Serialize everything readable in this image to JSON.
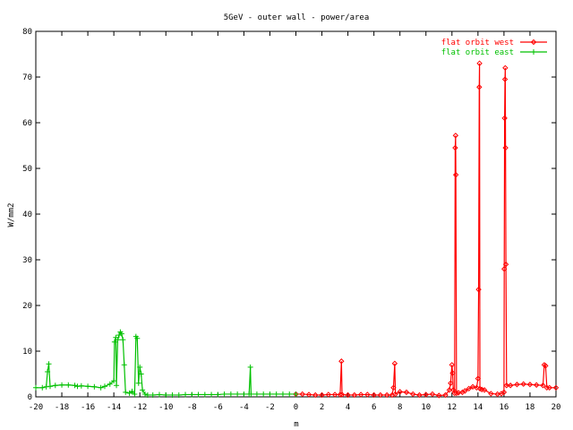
{
  "chart_data": {
    "type": "line",
    "title": "5GeV - outer wall - power/area",
    "xlabel": "m",
    "ylabel": "W/mm2",
    "xlim": [
      -20,
      20
    ],
    "ylim": [
      0,
      80
    ],
    "xticks": [
      -20,
      -18,
      -16,
      -14,
      -12,
      -10,
      -8,
      -6,
      -4,
      -2,
      0,
      2,
      4,
      6,
      8,
      10,
      12,
      14,
      16,
      18,
      20
    ],
    "yticks": [
      0,
      10,
      20,
      30,
      40,
      50,
      60,
      70,
      80
    ],
    "legend_position": "top-right",
    "series": [
      {
        "name": "flat orbit west",
        "color": "#ff0000",
        "marker": "diamond",
        "points": [
          [
            0.0,
            0.6
          ],
          [
            0.5,
            0.6
          ],
          [
            1.0,
            0.5
          ],
          [
            1.5,
            0.4
          ],
          [
            2.0,
            0.4
          ],
          [
            2.5,
            0.5
          ],
          [
            3.0,
            0.5
          ],
          [
            3.4,
            0.5
          ],
          [
            3.5,
            7.8
          ],
          [
            3.55,
            0.5
          ],
          [
            4.0,
            0.4
          ],
          [
            4.5,
            0.4
          ],
          [
            5.0,
            0.5
          ],
          [
            5.5,
            0.5
          ],
          [
            6.0,
            0.4
          ],
          [
            6.5,
            0.4
          ],
          [
            7.0,
            0.4
          ],
          [
            7.4,
            0.4
          ],
          [
            7.5,
            2.0
          ],
          [
            7.6,
            7.3
          ],
          [
            7.65,
            0.6
          ],
          [
            8.0,
            1.1
          ],
          [
            8.5,
            1.0
          ],
          [
            9.0,
            0.6
          ],
          [
            9.5,
            0.4
          ],
          [
            10.0,
            0.5
          ],
          [
            10.5,
            0.6
          ],
          [
            11.0,
            0.3
          ],
          [
            11.5,
            0.4
          ],
          [
            11.8,
            1.5
          ],
          [
            11.9,
            3.0
          ],
          [
            12.0,
            7.0
          ],
          [
            12.05,
            5.2
          ],
          [
            12.1,
            1.5
          ],
          [
            12.2,
            0.8
          ],
          [
            12.25,
            54.5
          ],
          [
            12.28,
            57.2
          ],
          [
            12.3,
            48.6
          ],
          [
            12.35,
            0.8
          ],
          [
            12.5,
            0.9
          ],
          [
            12.8,
            1.0
          ],
          [
            13.0,
            1.3
          ],
          [
            13.3,
            1.8
          ],
          [
            13.6,
            2.2
          ],
          [
            13.9,
            2.0
          ],
          [
            14.0,
            4.0
          ],
          [
            14.05,
            23.5
          ],
          [
            14.1,
            67.8
          ],
          [
            14.12,
            73.0
          ],
          [
            14.15,
            1.8
          ],
          [
            14.3,
            1.6
          ],
          [
            14.5,
            1.5
          ],
          [
            15.0,
            0.7
          ],
          [
            15.5,
            0.6
          ],
          [
            15.8,
            0.7
          ],
          [
            16.0,
            1.0
          ],
          [
            16.02,
            28.0
          ],
          [
            16.05,
            61.0
          ],
          [
            16.08,
            69.5
          ],
          [
            16.1,
            72.0
          ],
          [
            16.12,
            54.5
          ],
          [
            16.15,
            29.0
          ],
          [
            16.2,
            2.5
          ],
          [
            16.5,
            2.5
          ],
          [
            17.0,
            2.7
          ],
          [
            17.5,
            2.8
          ],
          [
            18.0,
            2.7
          ],
          [
            18.5,
            2.6
          ],
          [
            19.0,
            2.5
          ],
          [
            19.1,
            7.0
          ],
          [
            19.2,
            6.8
          ],
          [
            19.3,
            2.0
          ],
          [
            19.5,
            2.0
          ],
          [
            20.0,
            2.0
          ]
        ]
      },
      {
        "name": "flat orbit east",
        "color": "#00c000",
        "marker": "plus",
        "points": [
          [
            -20.0,
            2.0
          ],
          [
            -19.5,
            2.0
          ],
          [
            -19.2,
            2.2
          ],
          [
            -19.1,
            5.5
          ],
          [
            -19.0,
            7.2
          ],
          [
            -18.9,
            2.3
          ],
          [
            -18.5,
            2.5
          ],
          [
            -18.0,
            2.6
          ],
          [
            -17.5,
            2.6
          ],
          [
            -17.0,
            2.5
          ],
          [
            -16.8,
            2.3
          ],
          [
            -16.5,
            2.4
          ],
          [
            -16.0,
            2.3
          ],
          [
            -15.5,
            2.2
          ],
          [
            -15.0,
            2.0
          ],
          [
            -14.7,
            2.3
          ],
          [
            -14.3,
            2.8
          ],
          [
            -14.0,
            3.5
          ],
          [
            -13.95,
            12.0
          ],
          [
            -13.85,
            13.0
          ],
          [
            -13.8,
            2.5
          ],
          [
            -13.7,
            12.5
          ],
          [
            -13.6,
            13.5
          ],
          [
            -13.5,
            14.2
          ],
          [
            -13.4,
            13.8
          ],
          [
            -13.3,
            12.5
          ],
          [
            -13.2,
            7.0
          ],
          [
            -13.1,
            1.0
          ],
          [
            -12.8,
            0.8
          ],
          [
            -12.6,
            1.2
          ],
          [
            -12.4,
            0.6
          ],
          [
            -12.3,
            13.2
          ],
          [
            -12.2,
            12.8
          ],
          [
            -12.1,
            3.0
          ],
          [
            -12.0,
            6.5
          ],
          [
            -11.9,
            5.0
          ],
          [
            -11.8,
            1.5
          ],
          [
            -11.6,
            0.6
          ],
          [
            -11.4,
            0.4
          ],
          [
            -11.0,
            0.4
          ],
          [
            -10.5,
            0.5
          ],
          [
            -10.0,
            0.4
          ],
          [
            -9.5,
            0.4
          ],
          [
            -9.0,
            0.4
          ],
          [
            -8.5,
            0.5
          ],
          [
            -8.0,
            0.5
          ],
          [
            -7.5,
            0.5
          ],
          [
            -7.0,
            0.5
          ],
          [
            -6.5,
            0.5
          ],
          [
            -6.0,
            0.5
          ],
          [
            -5.5,
            0.6
          ],
          [
            -5.0,
            0.6
          ],
          [
            -4.5,
            0.6
          ],
          [
            -4.0,
            0.6
          ],
          [
            -3.6,
            0.6
          ],
          [
            -3.5,
            6.5
          ],
          [
            -3.45,
            0.6
          ],
          [
            -3.0,
            0.6
          ],
          [
            -2.5,
            0.6
          ],
          [
            -2.0,
            0.6
          ],
          [
            -1.5,
            0.6
          ],
          [
            -1.0,
            0.6
          ],
          [
            -0.5,
            0.6
          ],
          [
            0.0,
            0.6
          ]
        ]
      }
    ]
  }
}
